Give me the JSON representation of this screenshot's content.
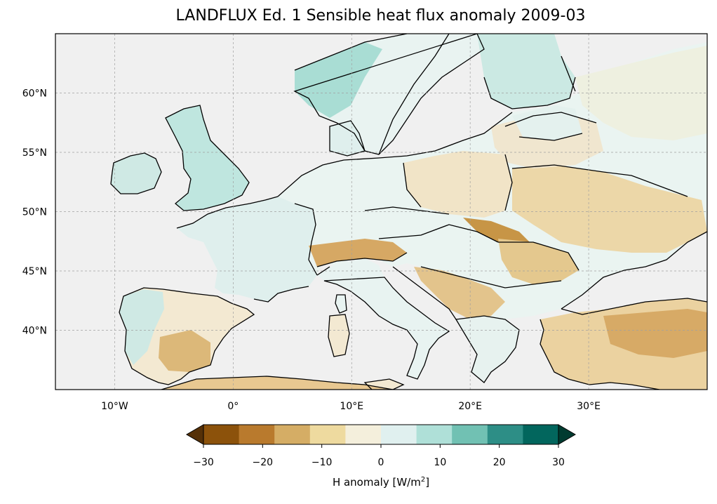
{
  "title": "LANDFLUX Ed. 1 Sensible heat flux anomaly 2009-03",
  "map": {
    "extent": {
      "lon": [
        -15,
        40
      ],
      "lat": [
        35,
        65
      ]
    },
    "lat_ticks": [
      "60°N",
      "55°N",
      "50°N",
      "45°N",
      "40°N"
    ],
    "lat_values": [
      60,
      55,
      50,
      45,
      40
    ],
    "lon_ticks": [
      "10°W",
      "0°",
      "10°E",
      "20°E",
      "30°E"
    ],
    "lon_values": [
      -10,
      0,
      10,
      20,
      30
    ],
    "gridlines": true,
    "ocean_color": "#f0f0f0",
    "coastline_color": "#000000"
  },
  "colorbar": {
    "label_prefix": "H anomaly [W/m",
    "label_sup": "2",
    "label_suffix": "]",
    "ticks": [
      "−30",
      "−20",
      "−10",
      "0",
      "10",
      "20",
      "30"
    ],
    "tick_values": [
      -30,
      -20,
      -10,
      0,
      10,
      20,
      30
    ],
    "range": [
      -30,
      30
    ],
    "colors": [
      "#553007",
      "#8c520b",
      "#b97a2d",
      "#d5ad65",
      "#eeda9f",
      "#f4efdc",
      "#e0f0ef",
      "#afe0d8",
      "#71c1b3",
      "#2d8e86",
      "#02665d",
      "#003b30"
    ],
    "extend": "both"
  }
}
